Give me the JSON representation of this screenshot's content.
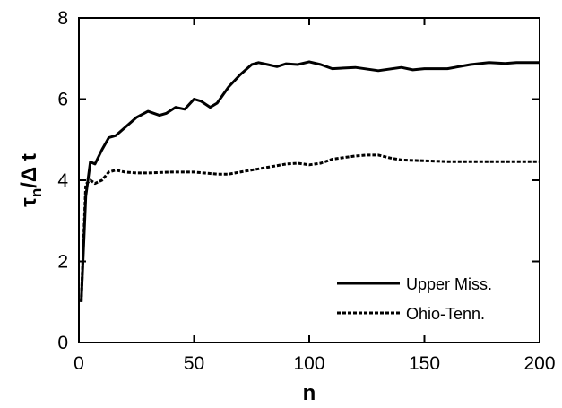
{
  "chart_data": {
    "type": "line",
    "xlabel": "n",
    "ylabel": {
      "base": "τ",
      "sub": "n",
      "rest": "/Δ t"
    },
    "xlim": [
      0,
      200
    ],
    "ylim": [
      0,
      8
    ],
    "xticks": [
      0,
      50,
      100,
      150,
      200
    ],
    "yticks": [
      0,
      2,
      4,
      6,
      8
    ],
    "xtick_labels": [
      "0",
      "50",
      "100",
      "150",
      "200"
    ],
    "ytick_labels": [
      "0",
      "2",
      "4",
      "6",
      "8"
    ],
    "grid": false,
    "legend_position": "bottom-right",
    "series": [
      {
        "name": "Upper Miss.",
        "style": "solid",
        "color": "#000000",
        "x": [
          1,
          3,
          5,
          7,
          10,
          13,
          16,
          20,
          25,
          30,
          35,
          38,
          42,
          46,
          50,
          53,
          57,
          60,
          65,
          70,
          75,
          78,
          82,
          86,
          90,
          95,
          100,
          105,
          110,
          120,
          130,
          140,
          145,
          150,
          160,
          170,
          178,
          185,
          190,
          200
        ],
        "y": [
          1.0,
          3.6,
          4.45,
          4.4,
          4.75,
          5.05,
          5.1,
          5.3,
          5.55,
          5.7,
          5.6,
          5.65,
          5.8,
          5.75,
          6.0,
          5.95,
          5.8,
          5.9,
          6.3,
          6.6,
          6.85,
          6.9,
          6.85,
          6.8,
          6.87,
          6.85,
          6.92,
          6.85,
          6.75,
          6.78,
          6.7,
          6.78,
          6.72,
          6.75,
          6.75,
          6.85,
          6.9,
          6.88,
          6.9,
          6.9
        ]
      },
      {
        "name": "Ohio-Tenn.",
        "style": "dashed",
        "color": "#000000",
        "x": [
          1,
          3,
          5,
          7,
          10,
          13,
          16,
          20,
          25,
          30,
          40,
          50,
          60,
          65,
          70,
          80,
          90,
          95,
          100,
          105,
          110,
          120,
          125,
          130,
          135,
          140,
          150,
          160,
          170,
          180,
          190,
          200
        ],
        "y": [
          1.0,
          3.9,
          4.0,
          3.92,
          4.0,
          4.2,
          4.25,
          4.2,
          4.18,
          4.18,
          4.2,
          4.2,
          4.15,
          4.15,
          4.2,
          4.3,
          4.4,
          4.42,
          4.38,
          4.42,
          4.52,
          4.6,
          4.62,
          4.62,
          4.55,
          4.5,
          4.48,
          4.46,
          4.46,
          4.46,
          4.46,
          4.46
        ]
      }
    ]
  }
}
